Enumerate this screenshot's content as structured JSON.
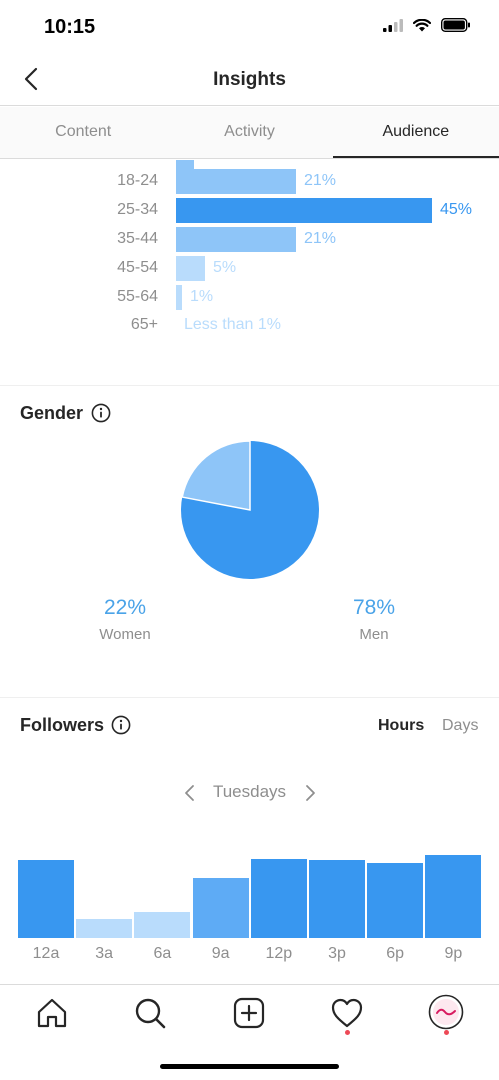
{
  "status": {
    "time": "10:15"
  },
  "nav": {
    "title": "Insights",
    "back_icon": "chevron-left-icon"
  },
  "tabs": [
    {
      "label": "Content",
      "active": false
    },
    {
      "label": "Activity",
      "active": false
    },
    {
      "label": "Audience",
      "active": true
    }
  ],
  "age_range": {
    "rows": [
      {
        "label": "18-24",
        "value": "21%",
        "percent": 21
      },
      {
        "label": "25-34",
        "value": "45%",
        "percent": 45
      },
      {
        "label": "35-44",
        "value": "21%",
        "percent": 21
      },
      {
        "label": "45-54",
        "value": "5%",
        "percent": 5
      },
      {
        "label": "55-64",
        "value": "1%",
        "percent": 1
      },
      {
        "label": "65+",
        "value": "Less than 1%",
        "percent": 0
      }
    ]
  },
  "gender": {
    "title": "Gender",
    "women_pct": "22%",
    "women_label": "Women",
    "women_value": 22,
    "men_pct": "78%",
    "men_label": "Men",
    "men_value": 78
  },
  "followers": {
    "title": "Followers",
    "toggle_hours": "Hours",
    "toggle_days": "Days",
    "day": "Tuesdays"
  },
  "chart_data": {
    "type": "bar",
    "categories": [
      "12a",
      "3a",
      "6a",
      "9a",
      "12p",
      "3p",
      "6p",
      "9p"
    ],
    "values": [
      78,
      19,
      26,
      60,
      79,
      78,
      75,
      83
    ],
    "ylim": [
      0,
      100
    ]
  },
  "colors": {
    "bar_primary": "#3897f0",
    "bar_light": "#8ec5f8",
    "bar_lighter": "#b9dcfc",
    "accent": "#3897f0",
    "notification": "#ed4956"
  },
  "bottom_nav": [
    "home-icon",
    "search-icon",
    "new-post-icon",
    "activity-heart-icon",
    "profile-avatar"
  ]
}
